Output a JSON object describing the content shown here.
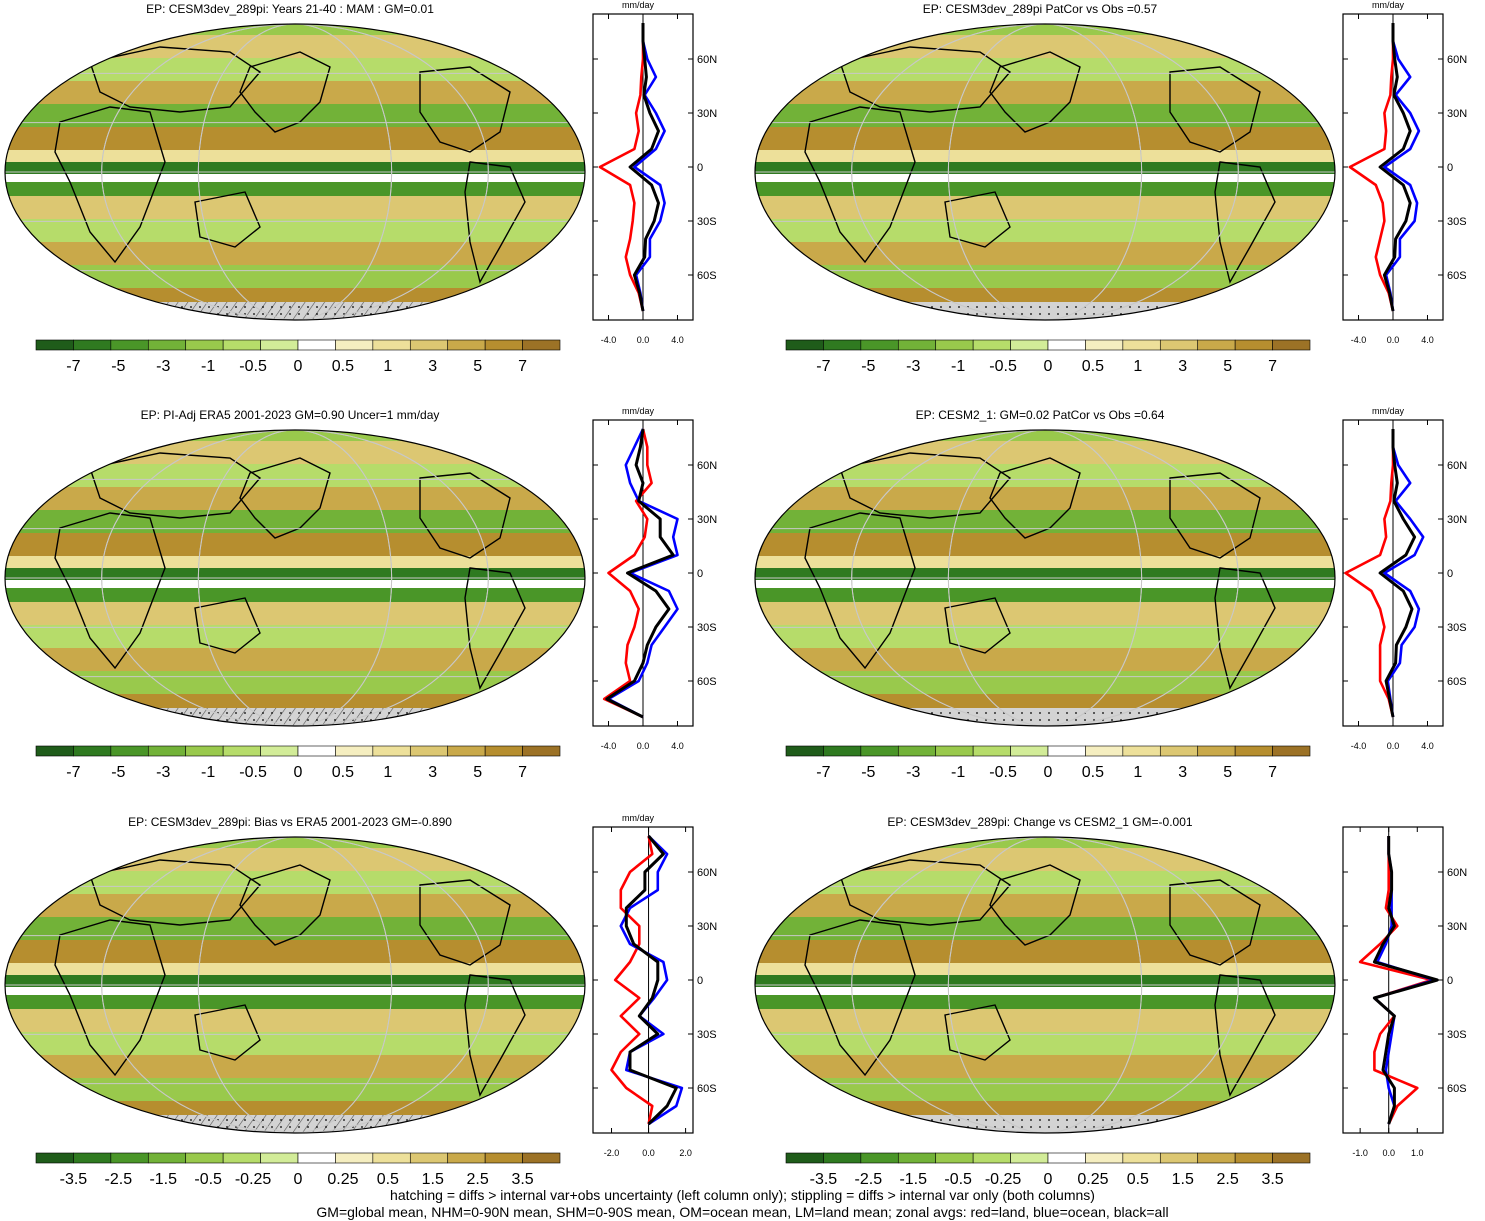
{
  "colors": {
    "land": "#d3d3d3",
    "hatch": "#555555",
    "line_land": "#ff0000",
    "line_ocean": "#0000ff",
    "line_all": "#000000",
    "graticule": "#c8c8c8"
  },
  "panels": [
    {
      "title": "EP: CESM3dev_289pi: Years 21-40 : MAM : GM=0.01",
      "palette": [
        "#1f5c1a",
        "#2f7a20",
        "#4a9628",
        "#72b238",
        "#99c94c",
        "#b6dc6a",
        "#d2ec98",
        "#ffffff",
        "#f5eec0",
        "#ede09a",
        "#dcc772",
        "#c9a94a",
        "#b68e2f",
        "#9c7226"
      ],
      "colorbar_labels": [
        "-7",
        "-5",
        "-3",
        "-1",
        "-0.5",
        "0",
        "0.5",
        "1",
        "3",
        "5",
        "7"
      ],
      "hatch": true,
      "stipple": true,
      "chart_data": {
        "type": "line",
        "unit": "mm/day",
        "xlim": [
          -5.8,
          5.8
        ],
        "xticks": [
          "-4.0",
          "0.0",
          "4.0"
        ],
        "xtick_values": [
          -4,
          0,
          4
        ],
        "ylim": [
          -85,
          85
        ],
        "yticks": [
          "60N",
          "30N",
          "0",
          "30S",
          "60S"
        ],
        "ytick_values": [
          60,
          30,
          0,
          -30,
          -60
        ],
        "lat": [
          -80,
          -70,
          -60,
          -50,
          -40,
          -30,
          -20,
          -10,
          0,
          10,
          20,
          30,
          40,
          50,
          60,
          70,
          80
        ],
        "series": [
          {
            "name": "land",
            "color": "#ff0000",
            "values": [
              0,
              -0.5,
              -1.5,
              -2.0,
              -1.5,
              -1.2,
              -1.0,
              -1.5,
              -5.0,
              -1.0,
              -0.5,
              -0.8,
              -0.3,
              -0.2,
              0,
              0,
              0
            ]
          },
          {
            "name": "ocean",
            "color": "#0000ff",
            "values": [
              0,
              -0.3,
              -0.8,
              0.8,
              0.8,
              2.0,
              2.5,
              2.0,
              -1.0,
              1.5,
              2.5,
              1.5,
              0.2,
              1.5,
              0.5,
              0,
              0
            ]
          },
          {
            "name": "all",
            "color": "#000000",
            "values": [
              0,
              -0.4,
              -1.0,
              0.2,
              0.3,
              1.3,
              1.8,
              1.0,
              -1.5,
              1.0,
              1.8,
              0.8,
              0.1,
              0.4,
              0.2,
              0,
              0
            ]
          }
        ]
      }
    },
    {
      "title": "EP: CESM3dev_289pi PatCor vs Obs =0.57",
      "palette": [
        "#1f5c1a",
        "#2f7a20",
        "#4a9628",
        "#72b238",
        "#99c94c",
        "#b6dc6a",
        "#d2ec98",
        "#ffffff",
        "#f5eec0",
        "#ede09a",
        "#dcc772",
        "#c9a94a",
        "#b68e2f",
        "#9c7226"
      ],
      "colorbar_labels": [
        "-7",
        "-5",
        "-3",
        "-1",
        "-0.5",
        "0",
        "0.5",
        "1",
        "3",
        "5",
        "7"
      ],
      "hatch": false,
      "stipple": true,
      "chart_data": {
        "type": "line",
        "unit": "mm/day",
        "xlim": [
          -5.8,
          5.8
        ],
        "xticks": [
          "-4.0",
          "0.0",
          "4.0"
        ],
        "xtick_values": [
          -4,
          0,
          4
        ],
        "ylim": [
          -85,
          85
        ],
        "yticks": [
          "60N",
          "30N",
          "0",
          "30S",
          "60S"
        ],
        "ytick_values": [
          60,
          30,
          0,
          -30,
          -60
        ],
        "lat": [
          -80,
          -70,
          -60,
          -50,
          -40,
          -30,
          -20,
          -10,
          0,
          10,
          20,
          30,
          40,
          50,
          60,
          70,
          80
        ],
        "series": [
          {
            "name": "land",
            "color": "#ff0000",
            "values": [
              0,
              -0.5,
              -1.5,
              -2.0,
              -1.5,
              -1.0,
              -1.2,
              -2.0,
              -5.0,
              -1.0,
              -0.8,
              -1.0,
              -0.3,
              -0.2,
              0,
              0,
              0
            ]
          },
          {
            "name": "ocean",
            "color": "#0000ff",
            "values": [
              0,
              -0.3,
              -0.8,
              0.8,
              0.8,
              2.5,
              2.8,
              2.0,
              -1.0,
              2.0,
              3.0,
              2.0,
              0.3,
              2.0,
              0.6,
              0,
              0
            ]
          },
          {
            "name": "all",
            "color": "#000000",
            "values": [
              0,
              -0.4,
              -1.0,
              0.2,
              0.3,
              1.5,
              2.0,
              1.2,
              -1.5,
              1.2,
              2.0,
              1.2,
              0.1,
              0.5,
              0.2,
              0,
              0
            ]
          }
        ]
      }
    },
    {
      "title": "EP: PI-Adj ERA5 2001-2023 GM=0.90 Uncer=1 mm/day",
      "palette": [
        "#1f5c1a",
        "#2f7a20",
        "#4a9628",
        "#72b238",
        "#99c94c",
        "#b6dc6a",
        "#d2ec98",
        "#ffffff",
        "#f5eec0",
        "#ede09a",
        "#dcc772",
        "#c9a94a",
        "#b68e2f",
        "#9c7226"
      ],
      "colorbar_labels": [
        "-7",
        "-5",
        "-3",
        "-1",
        "-0.5",
        "0",
        "0.5",
        "1",
        "3",
        "5",
        "7"
      ],
      "hatch": true,
      "stipple": true,
      "chart_data": {
        "type": "line",
        "unit": "mm/day",
        "xlim": [
          -5.8,
          5.8
        ],
        "xticks": [
          "-4.0",
          "0.0",
          "4.0"
        ],
        "xtick_values": [
          -4,
          0,
          4
        ],
        "ylim": [
          -85,
          85
        ],
        "yticks": [
          "60N",
          "30N",
          "0",
          "30S",
          "60S"
        ],
        "ytick_values": [
          60,
          30,
          0,
          -30,
          -60
        ],
        "lat": [
          -80,
          -70,
          -60,
          -50,
          -40,
          -30,
          -20,
          -10,
          0,
          10,
          20,
          30,
          40,
          50,
          60,
          70,
          80
        ],
        "series": [
          {
            "name": "land",
            "color": "#ff0000",
            "values": [
              0,
              -4.5,
              -1.5,
              -2.0,
              -1.8,
              -1.0,
              -0.5,
              -1.5,
              -4.0,
              -1.0,
              0.2,
              0.5,
              -0.8,
              1.0,
              0.5,
              0.5,
              0
            ]
          },
          {
            "name": "ocean",
            "color": "#0000ff",
            "values": [
              0,
              -4.0,
              -0.5,
              0.5,
              1.0,
              2.5,
              4.0,
              3.0,
              -1.5,
              4.0,
              3.5,
              4.0,
              -0.5,
              -1.5,
              -2.0,
              -1.0,
              0
            ]
          },
          {
            "name": "all",
            "color": "#000000",
            "values": [
              0,
              -4.2,
              -1.0,
              0.0,
              0.5,
              1.5,
              3.0,
              1.5,
              -1.8,
              3.5,
              2.0,
              2.0,
              -0.5,
              0.0,
              -0.8,
              -0.3,
              0
            ]
          }
        ]
      }
    },
    {
      "title": "EP: CESM2_1: GM=0.02 PatCor vs Obs =0.64",
      "palette": [
        "#1f5c1a",
        "#2f7a20",
        "#4a9628",
        "#72b238",
        "#99c94c",
        "#b6dc6a",
        "#d2ec98",
        "#ffffff",
        "#f5eec0",
        "#ede09a",
        "#dcc772",
        "#c9a94a",
        "#b68e2f",
        "#9c7226"
      ],
      "colorbar_labels": [
        "-7",
        "-5",
        "-3",
        "-1",
        "-0.5",
        "0",
        "0.5",
        "1",
        "3",
        "5",
        "7"
      ],
      "hatch": false,
      "stipple": true,
      "chart_data": {
        "type": "line",
        "unit": "mm/day",
        "xlim": [
          -5.8,
          5.8
        ],
        "xticks": [
          "-4.0",
          "0.0",
          "4.0"
        ],
        "xtick_values": [
          -4,
          0,
          4
        ],
        "ylim": [
          -85,
          85
        ],
        "yticks": [
          "60N",
          "30N",
          "0",
          "30S",
          "60S"
        ],
        "ytick_values": [
          60,
          30,
          0,
          -30,
          -60
        ],
        "lat": [
          -80,
          -70,
          -60,
          -50,
          -40,
          -30,
          -20,
          -10,
          0,
          10,
          20,
          30,
          40,
          50,
          60,
          70,
          80
        ],
        "series": [
          {
            "name": "land",
            "color": "#ff0000",
            "values": [
              0,
              -0.5,
              -1.5,
              -1.5,
              -1.5,
              -1.0,
              -1.5,
              -2.5,
              -5.5,
              -1.5,
              -0.8,
              -1.0,
              -0.3,
              -0.2,
              0,
              0,
              0
            ]
          },
          {
            "name": "ocean",
            "color": "#0000ff",
            "values": [
              0,
              -0.3,
              -0.6,
              0.8,
              1.0,
              2.5,
              3.0,
              2.0,
              -1.0,
              2.5,
              3.5,
              2.0,
              0.3,
              2.0,
              0.6,
              0,
              0
            ]
          },
          {
            "name": "all",
            "color": "#000000",
            "values": [
              0,
              -0.4,
              -0.8,
              0.3,
              0.4,
              1.5,
              2.2,
              1.2,
              -1.5,
              1.5,
              2.5,
              1.2,
              0.1,
              0.5,
              0.2,
              0,
              0
            ]
          }
        ]
      }
    },
    {
      "title": "EP: CESM3dev_289pi: Bias vs ERA5 2001-2023 GM=-0.890",
      "palette": [
        "#1f5c1a",
        "#2f7a20",
        "#4a9628",
        "#72b238",
        "#99c94c",
        "#b6dc6a",
        "#d2ec98",
        "#ffffff",
        "#f5eec0",
        "#ede09a",
        "#dcc772",
        "#c9a94a",
        "#b68e2f",
        "#9c7226"
      ],
      "colorbar_labels": [
        "-3.5",
        "-2.5",
        "-1.5",
        "-0.5",
        "-0.25",
        "0",
        "0.25",
        "0.5",
        "1.5",
        "2.5",
        "3.5"
      ],
      "hatch": true,
      "stipple": true,
      "chart_data": {
        "type": "line",
        "unit": "mm/day",
        "xlim": [
          -3.0,
          2.4
        ],
        "xticks": [
          "-2.0",
          "0.0",
          "2.0"
        ],
        "xtick_values": [
          -2,
          0,
          2
        ],
        "ylim": [
          -85,
          85
        ],
        "yticks": [
          "60N",
          "30N",
          "0",
          "30S",
          "60S"
        ],
        "ytick_values": [
          60,
          30,
          0,
          -30,
          -60
        ],
        "lat": [
          -80,
          -70,
          -60,
          -50,
          -40,
          -30,
          -20,
          -10,
          0,
          10,
          20,
          30,
          40,
          50,
          60,
          70,
          80
        ],
        "series": [
          {
            "name": "land",
            "color": "#ff0000",
            "values": [
              0,
              0.2,
              -1.2,
              -2.0,
              -1.5,
              -0.5,
              -1.5,
              -0.5,
              -1.8,
              -1.0,
              -0.5,
              -0.5,
              -1.5,
              -1.5,
              -1.0,
              0.2,
              0
            ]
          },
          {
            "name": "ocean",
            "color": "#0000ff",
            "values": [
              0,
              1.5,
              1.8,
              -1.2,
              -1.0,
              0.8,
              -0.5,
              0.3,
              1.0,
              0.8,
              -1.0,
              -1.5,
              -1.0,
              0.5,
              0.5,
              1.0,
              0
            ]
          },
          {
            "name": "all",
            "color": "#000000",
            "values": [
              0,
              1.0,
              1.5,
              -1.0,
              -1.0,
              0.5,
              -0.5,
              0.2,
              0.5,
              0.5,
              -0.8,
              -1.2,
              -1.2,
              -0.2,
              -0.2,
              0.8,
              0
            ]
          }
        ]
      }
    },
    {
      "title": "EP: CESM3dev_289pi: Change vs CESM2_1 GM=-0.001",
      "palette": [
        "#1f5c1a",
        "#2f7a20",
        "#4a9628",
        "#72b238",
        "#99c94c",
        "#b6dc6a",
        "#d2ec98",
        "#ffffff",
        "#f5eec0",
        "#ede09a",
        "#dcc772",
        "#c9a94a",
        "#b68e2f",
        "#9c7226"
      ],
      "colorbar_labels": [
        "-3.5",
        "-2.5",
        "-1.5",
        "-0.5",
        "-0.25",
        "0",
        "0.25",
        "0.5",
        "1.5",
        "2.5",
        "3.5"
      ],
      "hatch": false,
      "stipple": true,
      "chart_data": {
        "type": "line",
        "unit": "",
        "xlim": [
          -1.6,
          1.9
        ],
        "xticks": [
          "-1.0",
          "0.0",
          "1.0"
        ],
        "xtick_values": [
          -1,
          0,
          1
        ],
        "ylim": [
          -85,
          85
        ],
        "yticks": [
          "60N",
          "30N",
          "0",
          "30S",
          "60S"
        ],
        "ytick_values": [
          60,
          30,
          0,
          -30,
          -60
        ],
        "lat": [
          -80,
          -70,
          -60,
          -50,
          -40,
          -30,
          -20,
          -10,
          0,
          10,
          20,
          30,
          40,
          50,
          60,
          70,
          80
        ],
        "series": [
          {
            "name": "land",
            "color": "#ff0000",
            "values": [
              0,
              0.3,
              1.0,
              -0.5,
              -0.5,
              -0.3,
              0.2,
              -0.5,
              1.5,
              -1.0,
              -0.3,
              0.3,
              -0.1,
              0,
              0,
              0,
              0
            ]
          },
          {
            "name": "ocean",
            "color": "#0000ff",
            "values": [
              0,
              0.2,
              0.0,
              -0.1,
              0.0,
              0.1,
              0.2,
              -0.5,
              1.6,
              -0.4,
              -0.1,
              0.1,
              0.1,
              0.1,
              0.1,
              0,
              0
            ]
          },
          {
            "name": "all",
            "color": "#000000",
            "values": [
              0,
              0.2,
              0.2,
              -0.2,
              -0.1,
              0.0,
              0.2,
              -0.5,
              1.7,
              -0.5,
              -0.2,
              0.2,
              0.0,
              0.1,
              0.1,
              0,
              0
            ]
          }
        ]
      }
    }
  ],
  "footer": {
    "line1": "hatching = diffs > internal var+obs uncertainty (left column only); stippling = diffs > internal var only (both columns)",
    "line2": "GM=global mean, NHM=0-90N mean, SHM=0-90S mean, OM=ocean mean, LM=land mean; zonal avgs: red=land, blue=ocean, black=all"
  }
}
